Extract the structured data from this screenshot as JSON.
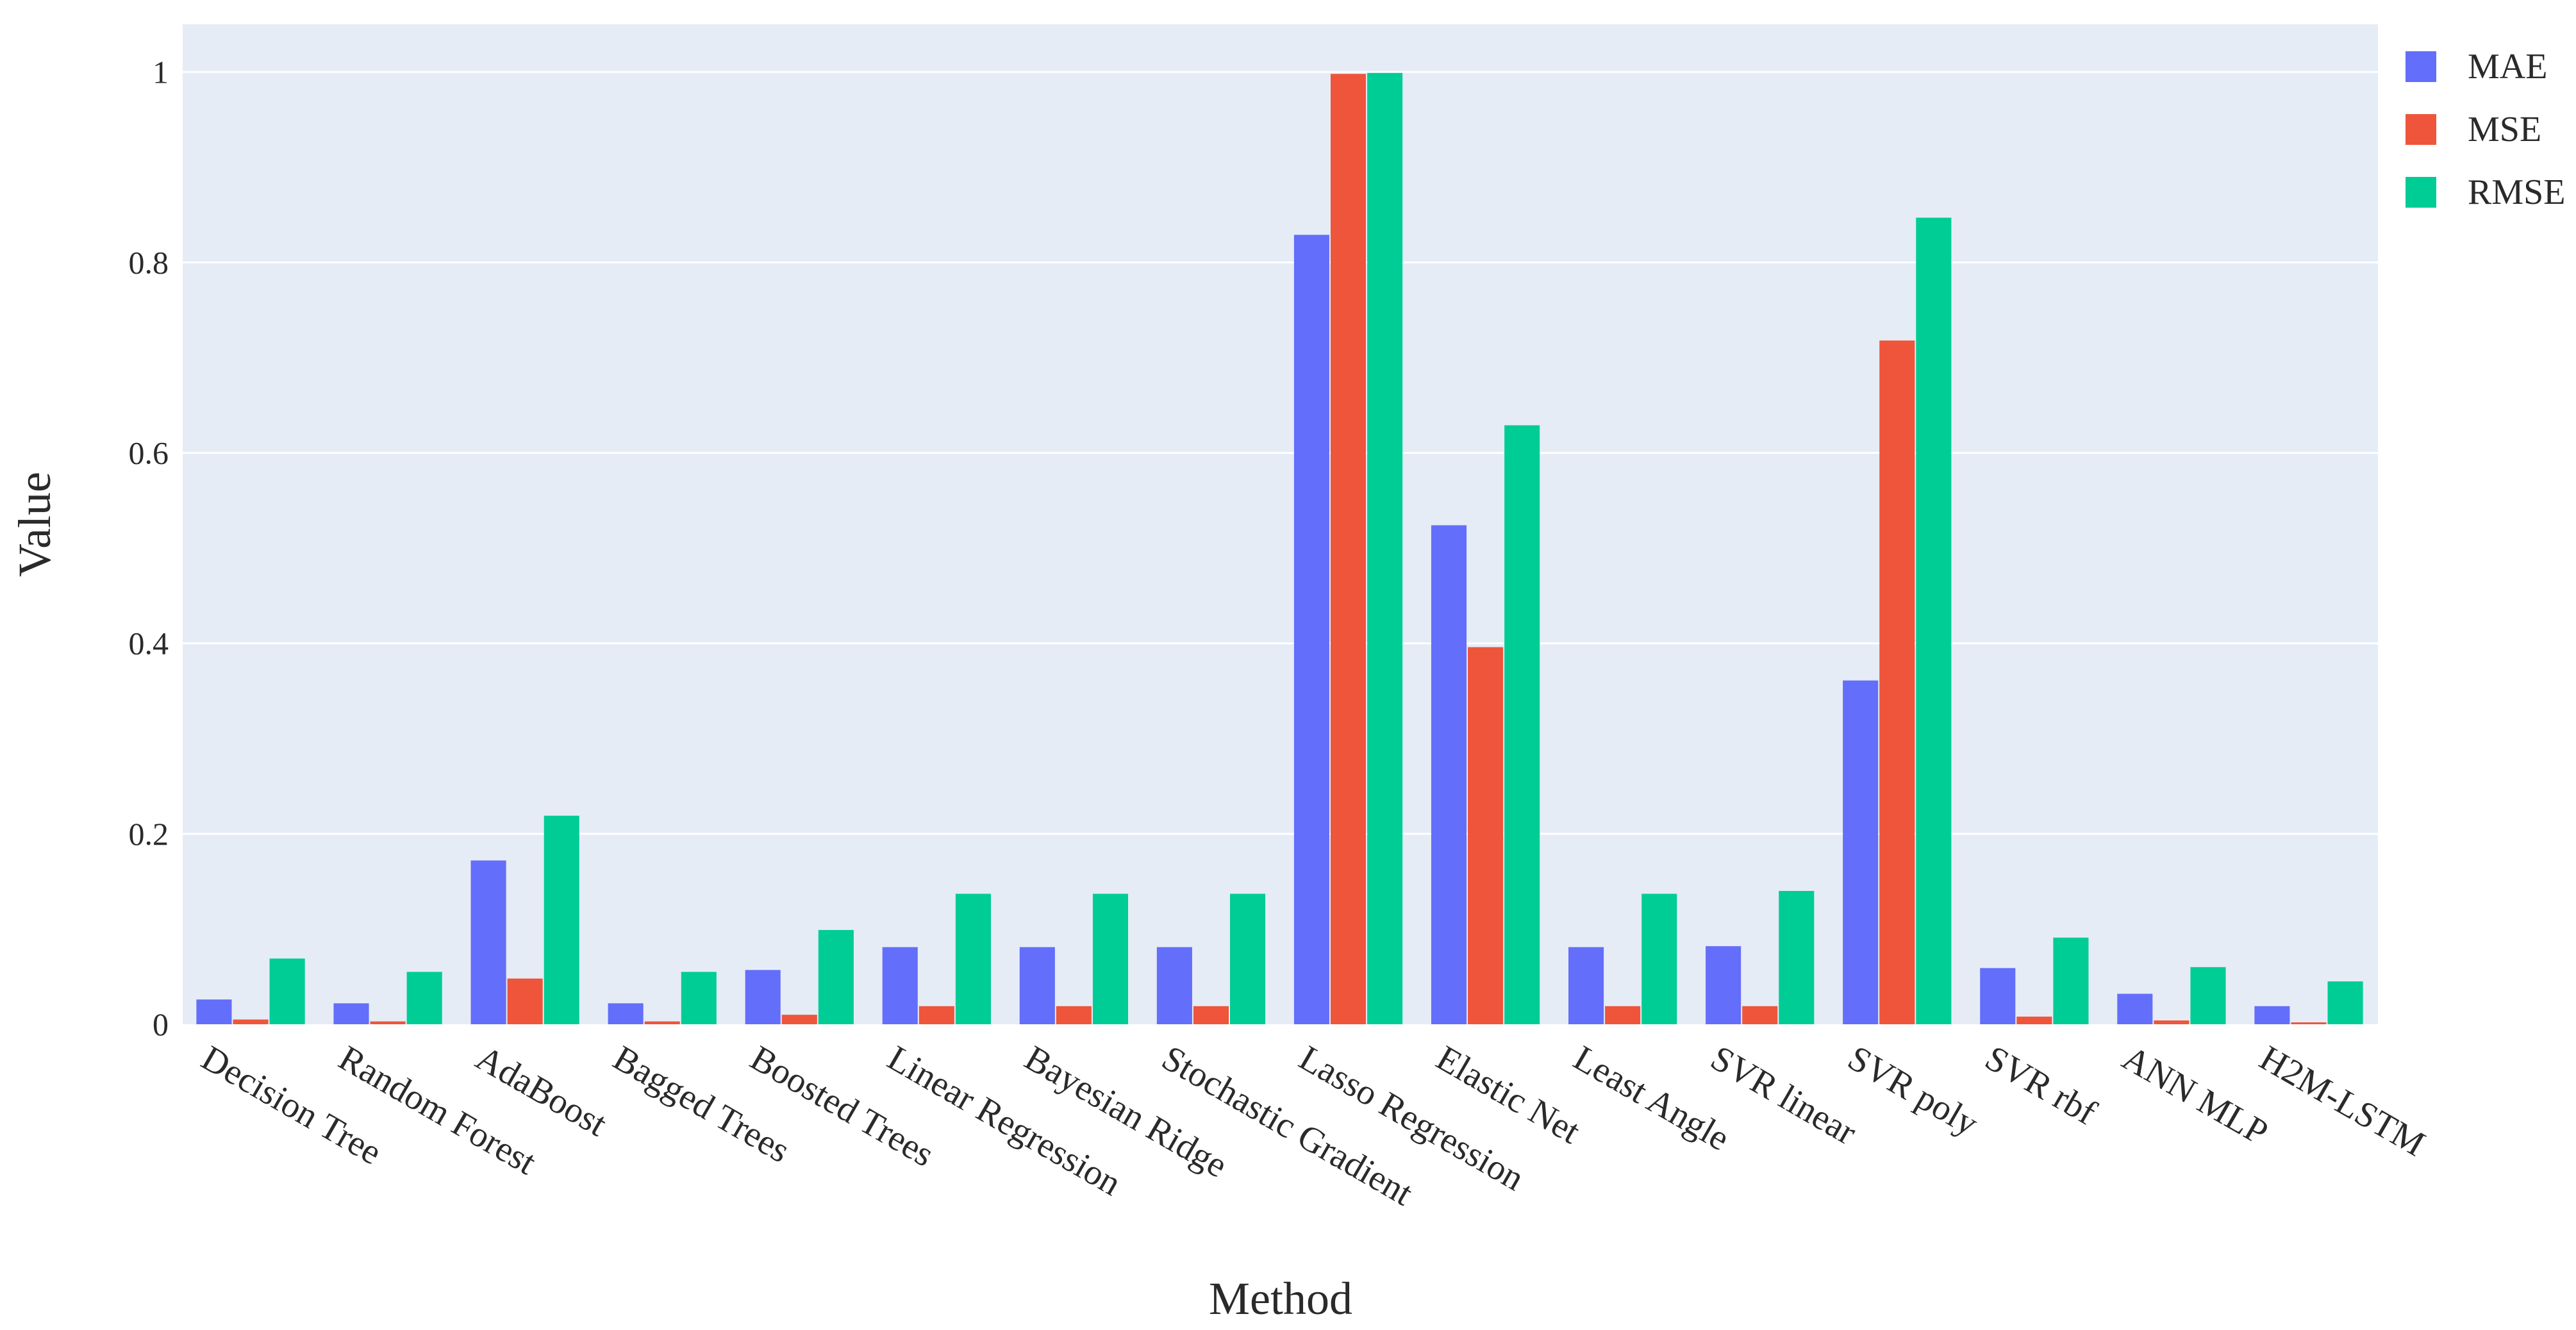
{
  "chart_data": {
    "type": "bar",
    "title": "",
    "xlabel": "Method",
    "ylabel": "Value",
    "ylim": [
      0,
      1.05
    ],
    "yticks": [
      0,
      0.2,
      0.4,
      0.6,
      0.8,
      1
    ],
    "ytick_labels": [
      "0",
      "0.2",
      "0.4",
      "0.6",
      "0.8",
      "1"
    ],
    "grid": true,
    "legend_position": "top-right",
    "categories": [
      "Decision Tree",
      "Random Forest",
      "AdaBoost",
      "Bagged Trees",
      "Boosted Trees",
      "Linear Regression",
      "Bayesian Ridge",
      "Stochastic Gradient",
      "Lasso Regression",
      "Elastic Net",
      "Least Angle",
      "SVR linear",
      "SVR poly",
      "SVR rbf",
      "ANN MLP",
      "H2M-LSTM"
    ],
    "series": [
      {
        "name": "MAE",
        "color": "#636efa",
        "values": [
          0.026,
          0.022,
          0.172,
          0.022,
          0.057,
          0.081,
          0.081,
          0.081,
          0.829,
          0.524,
          0.081,
          0.082,
          0.361,
          0.059,
          0.032,
          0.019
        ]
      },
      {
        "name": "MSE",
        "color": "#ef553b",
        "values": [
          0.005,
          0.003,
          0.048,
          0.003,
          0.01,
          0.019,
          0.019,
          0.019,
          0.998,
          0.396,
          0.019,
          0.019,
          0.718,
          0.008,
          0.004,
          0.002
        ]
      },
      {
        "name": "RMSE",
        "color": "#00cc96",
        "values": [
          0.069,
          0.055,
          0.219,
          0.055,
          0.099,
          0.137,
          0.137,
          0.137,
          0.999,
          0.629,
          0.137,
          0.14,
          0.847,
          0.091,
          0.06,
          0.045
        ]
      }
    ]
  },
  "style": {
    "plot_background": "#e5ecf6",
    "grid_color": "#ffffff",
    "text_color": "#2a2a2a"
  }
}
